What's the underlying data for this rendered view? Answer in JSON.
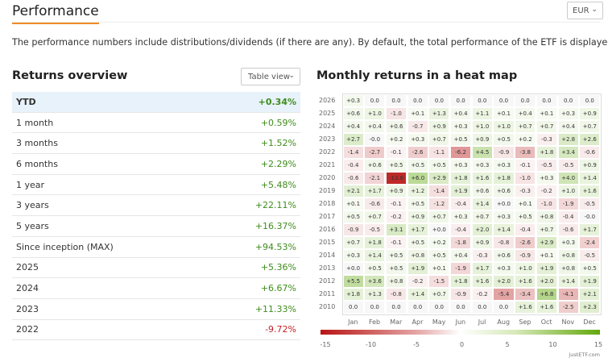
{
  "header": {
    "title": "Performance",
    "currency": "EUR"
  },
  "description": "The performance numbers include distributions/dividends (if there are any). By default, the total performance of the ETF is displayed.",
  "returns": {
    "title": "Returns overview",
    "view": "Table view",
    "rows": [
      {
        "label": "YTD",
        "value": "+0.34%"
      },
      {
        "label": "1 month",
        "value": "+0.59%"
      },
      {
        "label": "3 months",
        "value": "+1.52%"
      },
      {
        "label": "6 months",
        "value": "+2.29%"
      },
      {
        "label": "1 year",
        "value": "+5.48%"
      },
      {
        "label": "3 years",
        "value": "+22.11%"
      },
      {
        "label": "5 years",
        "value": "+16.37%"
      },
      {
        "label": "Since inception (MAX)",
        "value": "+94.53%"
      },
      {
        "label": "2025",
        "value": "+5.36%"
      },
      {
        "label": "2024",
        "value": "+6.67%"
      },
      {
        "label": "2023",
        "value": "+11.33%"
      },
      {
        "label": "2022",
        "value": "-9.72%"
      }
    ]
  },
  "heatmap": {
    "title": "Monthly returns in a heat map",
    "months": [
      "Jan",
      "Feb",
      "Mar",
      "Apr",
      "May",
      "Jun",
      "Jul",
      "Aug",
      "Sep",
      "Oct",
      "Nov",
      "Dec"
    ],
    "years": [
      {
        "year": "2026",
        "values": [
          "+0.3",
          "0.0",
          "0.0",
          "0.0",
          "0.0",
          "0.0",
          "0.0",
          "0.0",
          "0.0",
          "0.0",
          "0.0",
          "0.0"
        ]
      },
      {
        "year": "2025",
        "values": [
          "+0.6",
          "+1.0",
          "-1.0",
          "+0.1",
          "+1.3",
          "+0.4",
          "+1.1",
          "+0.1",
          "+0.4",
          "+0.1",
          "+0.3",
          "+0.9"
        ]
      },
      {
        "year": "2024",
        "values": [
          "+0.4",
          "+0.4",
          "+0.6",
          "-0.7",
          "+0.9",
          "+0.3",
          "+1.0",
          "+1.0",
          "+0.7",
          "+0.7",
          "+0.4",
          "+0.7"
        ]
      },
      {
        "year": "2023",
        "values": [
          "+2.7",
          "-0.0",
          "+0.2",
          "+0.3",
          "+0.7",
          "+0.5",
          "+0.9",
          "+0.5",
          "+0.2",
          "-0.3",
          "+2.8",
          "+2.6"
        ]
      },
      {
        "year": "2022",
        "values": [
          "-1.4",
          "-2.7",
          "-0.1",
          "-2.6",
          "-1.1",
          "-6.2",
          "+4.5",
          "-0.9",
          "-3.8",
          "+1.8",
          "+3.4",
          "-0.6"
        ]
      },
      {
        "year": "2021",
        "values": [
          "-0.4",
          "+0.6",
          "+0.5",
          "+0.5",
          "+0.5",
          "+0.3",
          "+0.3",
          "+0.3",
          "-0.1",
          "-0.5",
          "-0.5",
          "+0.9"
        ]
      },
      {
        "year": "2020",
        "values": [
          "-0.6",
          "-2.1",
          "-13.6",
          "+6.0",
          "+2.9",
          "+1.8",
          "+1.6",
          "+1.8",
          "-1.0",
          "+0.3",
          "+4.0",
          "+1.4"
        ]
      },
      {
        "year": "2019",
        "values": [
          "+2.1",
          "+1.7",
          "+0.9",
          "+1.2",
          "-1.4",
          "+1.9",
          "+0.6",
          "+0.6",
          "-0.3",
          "-0.2",
          "+1.0",
          "+1.6"
        ]
      },
      {
        "year": "2018",
        "values": [
          "+0.1",
          "-0.6",
          "-0.1",
          "+0.5",
          "-1.2",
          "-0.4",
          "+1.4",
          "+0.0",
          "+0.1",
          "-1.0",
          "-1.9",
          "-0.5"
        ]
      },
      {
        "year": "2017",
        "values": [
          "+0.5",
          "+0.7",
          "-0.2",
          "+0.9",
          "+0.7",
          "+0.3",
          "+0.7",
          "+0.3",
          "+0.5",
          "+0.8",
          "-0.4",
          "-0.0"
        ]
      },
      {
        "year": "2016",
        "values": [
          "-0.9",
          "-0.5",
          "+3.1",
          "+1.7",
          "+0.0",
          "-0.4",
          "+2.0",
          "+1.4",
          "-0.4",
          "+0.7",
          "-0.6",
          "+1.7"
        ]
      },
      {
        "year": "2015",
        "values": [
          "+0.7",
          "+1.8",
          "-0.1",
          "+0.5",
          "+0.2",
          "-1.8",
          "+0.9",
          "-0.8",
          "-2.6",
          "+2.9",
          "+0.3",
          "-2.4"
        ]
      },
      {
        "year": "2014",
        "values": [
          "+0.3",
          "+1.4",
          "+0.5",
          "+0.8",
          "+0.5",
          "+0.4",
          "-0.3",
          "+0.6",
          "-0.9",
          "+0.1",
          "+0.8",
          "-0.5"
        ]
      },
      {
        "year": "2013",
        "values": [
          "+0.0",
          "+0.5",
          "+0.5",
          "+1.9",
          "+0.1",
          "-1.9",
          "+1.7",
          "+0.3",
          "+1.0",
          "+1.9",
          "+0.8",
          "+0.5"
        ]
      },
      {
        "year": "2012",
        "values": [
          "+5.5",
          "+3.6",
          "+0.8",
          "-0.2",
          "-1.5",
          "+1.8",
          "+1.6",
          "+2.0",
          "+1.6",
          "+2.0",
          "+1.4",
          "+1.9"
        ]
      },
      {
        "year": "2011",
        "values": [
          "+1.8",
          "+1.3",
          "-0.8",
          "+1.4",
          "+0.7",
          "-0.9",
          "-0.2",
          "-5.4",
          "-3.4",
          "+6.8",
          "-4.1",
          "+2.1"
        ]
      },
      {
        "year": "2010",
        "values": [
          "0.0",
          "0.0",
          "0.0",
          "0.0",
          "0.0",
          "0.0",
          "0.0",
          "0.0",
          "+1.6",
          "+1.6",
          "-2.5",
          "+2.3"
        ]
      }
    ],
    "scale_ticks": [
      "-15",
      "-10",
      "-5",
      "0",
      "5",
      "10",
      "15"
    ],
    "scale_range": [
      -15,
      15
    ],
    "colors": {
      "negative": "#b81414",
      "positive": "#62a80c"
    },
    "credit": "justETF.com"
  }
}
